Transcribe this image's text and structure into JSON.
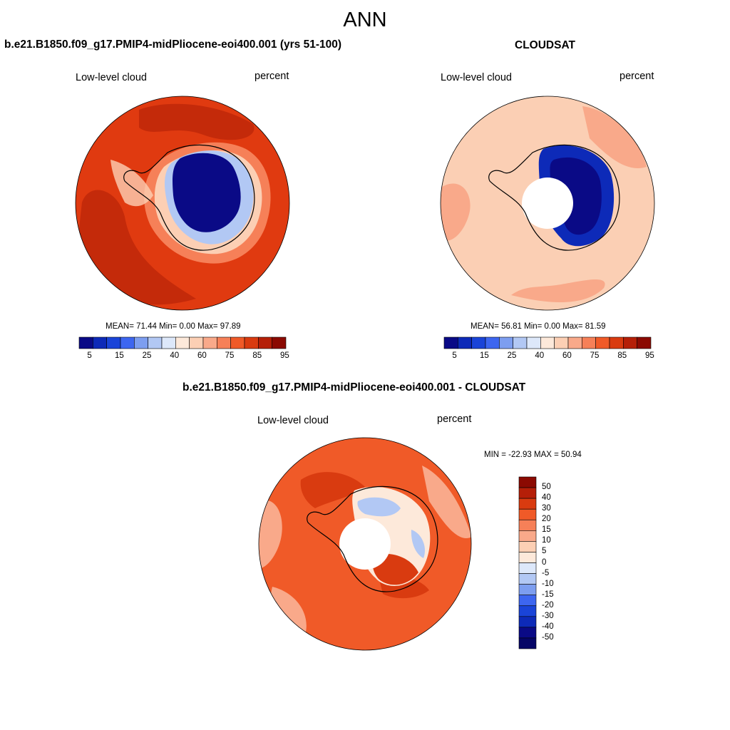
{
  "title": "ANN",
  "panels": [
    {
      "title": "b.e21.B1850.f09_g17.PMIP4-midPliocene-eoi400.001 (yrs 51-100)",
      "variable": "Low-level cloud",
      "units": "percent",
      "stats": {
        "label": "MEAN=  71.44  Min=   0.00  Max=  97.89",
        "mean": 71.44,
        "min": 0.0,
        "max": 97.89
      }
    },
    {
      "title": "CLOUDSAT",
      "variable": "Low-level cloud",
      "units": "percent",
      "stats": {
        "label": "MEAN=  56.81  Min=   0.00  Max=  81.59",
        "mean": 56.81,
        "min": 0.0,
        "max": 81.59
      }
    },
    {
      "title": "b.e21.B1850.f09_g17.PMIP4-midPliocene-eoi400.001 - CLOUDSAT",
      "variable": "Low-level cloud",
      "units": "percent",
      "stats": {
        "label": "MIN = -22.93 MAX =  50.94",
        "min": -22.93,
        "max": 50.94
      }
    }
  ],
  "colorbar_abs": {
    "tick_labels": [
      "5",
      "15",
      "25",
      "40",
      "60",
      "75",
      "85",
      "95"
    ],
    "colors": [
      "#0a0a86",
      "#0d2ab8",
      "#1a44d8",
      "#3d66f0",
      "#7d9ef0",
      "#b2c8f4",
      "#dde8fa",
      "#fde9da",
      "#fccfb4",
      "#f9a98a",
      "#f68058",
      "#f05a28",
      "#d93b10",
      "#b51f08",
      "#8b0a02"
    ]
  },
  "colorbar_diff": {
    "tick_labels": [
      "50",
      "40",
      "30",
      "20",
      "15",
      "10",
      "5",
      "0",
      "-5",
      "-10",
      "-15",
      "-20",
      "-30",
      "-40",
      "-50"
    ],
    "colors": [
      "#8b0a02",
      "#b51f08",
      "#d93b10",
      "#f05a28",
      "#f68058",
      "#f9a98a",
      "#fccfb4",
      "#fde9da",
      "#dde8fa",
      "#b2c8f4",
      "#7d9ef0",
      "#3d66f0",
      "#1a44d8",
      "#0d2ab8",
      "#0a0a86",
      "#050566"
    ]
  },
  "colors": {
    "ocean_model": "#e03a10",
    "ocean_model_dark": "#c42a0a",
    "ice_model": "#0a0a86",
    "ocean_obs": "#fbcfb4",
    "ocean_obs_mid": "#f9a98a",
    "ice_obs": "#0d2ab8",
    "ocean_diff": "#f05a28",
    "ocean_diff_dark": "#d93b10",
    "missing": "#ffffff",
    "coast": "#000000"
  }
}
